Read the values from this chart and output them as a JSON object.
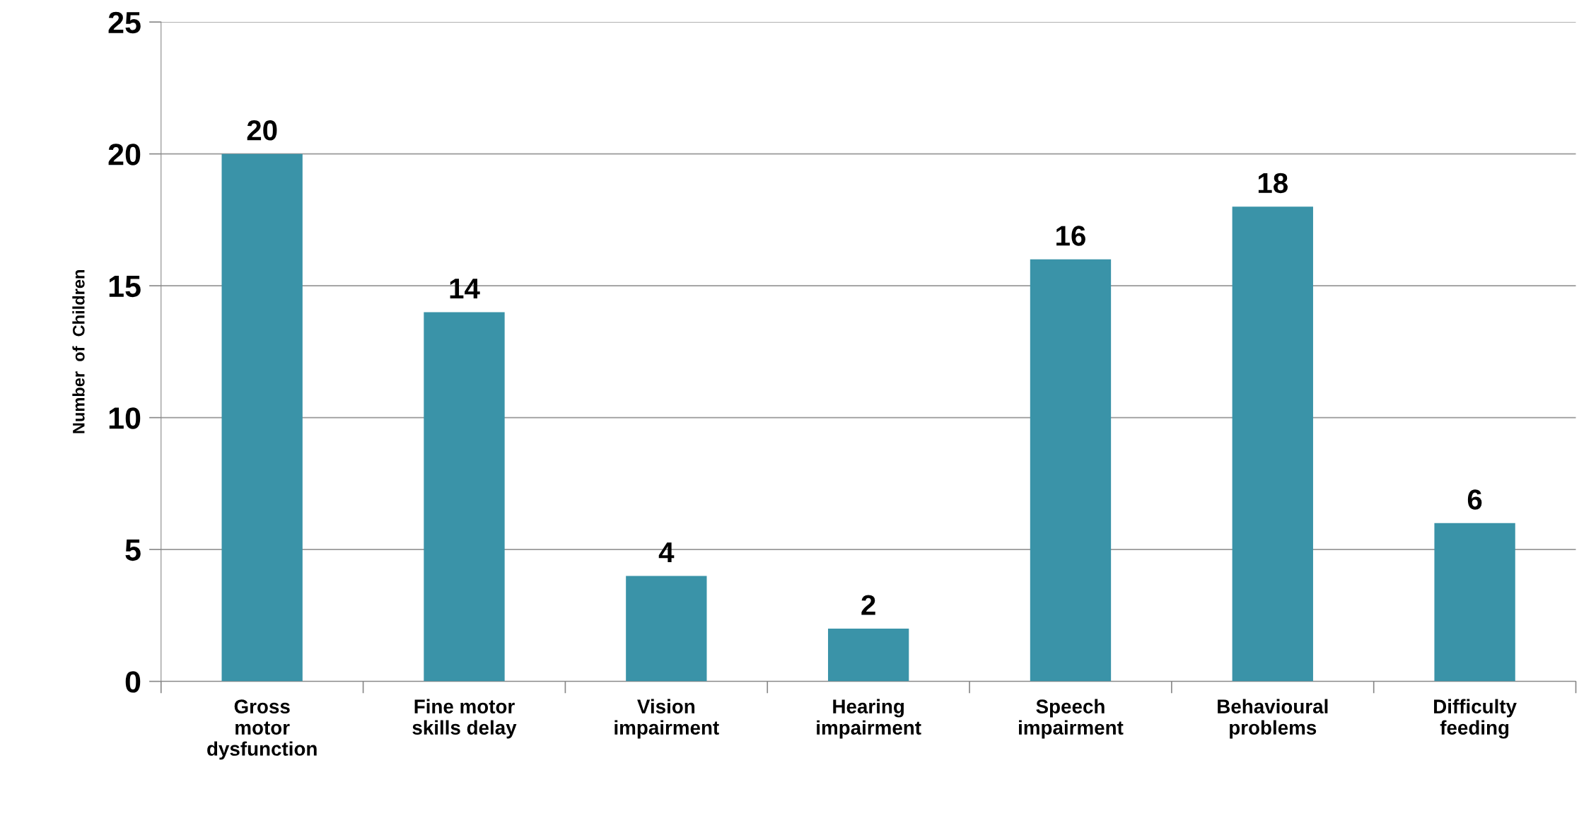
{
  "chart_data": {
    "type": "bar",
    "ylabel": "Number  of  Children",
    "categories": [
      "Gross\nmotor\ndysfunction",
      "Fine motor\nskills delay",
      "Vision\nimpairment",
      "Hearing\nimpairment",
      "Speech\nimpairment",
      "Behavioural\nproblems",
      "Difficulty\nfeeding"
    ],
    "values": [
      20,
      14,
      4,
      2,
      16,
      18,
      6
    ],
    "color": "#3a93a8",
    "ylim": [
      0,
      25
    ],
    "yticks": [
      0,
      5,
      10,
      15,
      20,
      25
    ],
    "grid": "y",
    "data_labels": true
  }
}
